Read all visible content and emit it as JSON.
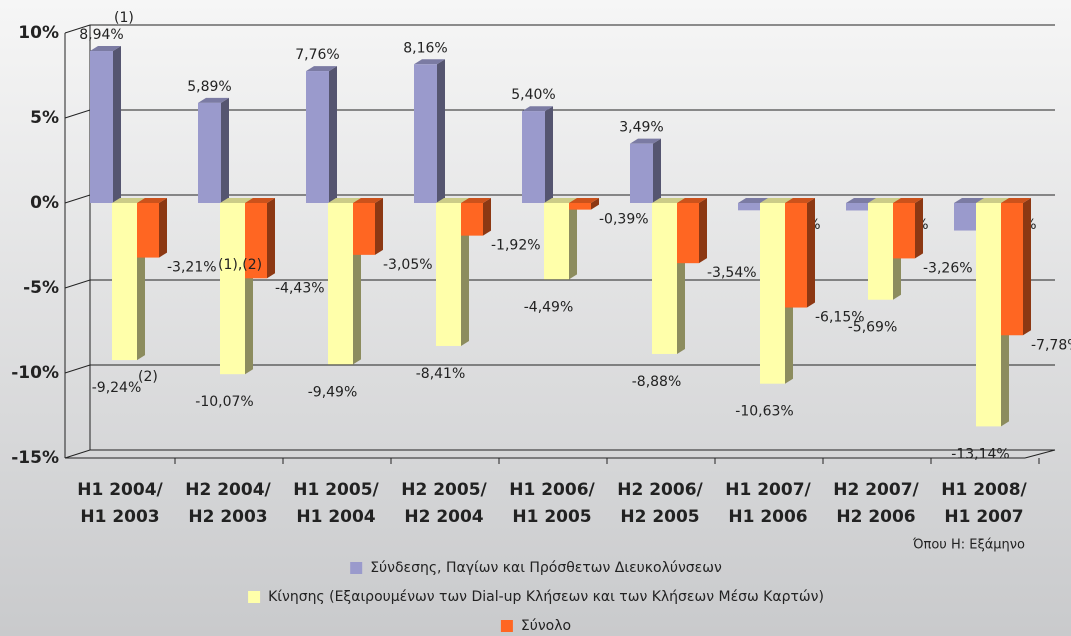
{
  "chart_data": {
    "type": "bar3d",
    "categories": [
      [
        "H1 2004/",
        "H1 2003"
      ],
      [
        "H2 2004/",
        "H2 2003"
      ],
      [
        "H1 2005/",
        "H1 2004"
      ],
      [
        "H2 2005/",
        "H2 2004"
      ],
      [
        "H1 2006/",
        "H1 2005"
      ],
      [
        "H2 2006/",
        "H2 2005"
      ],
      [
        "H1 2007/",
        "H1 2006"
      ],
      [
        "H2 2007/",
        "H2 2006"
      ],
      [
        "H1 2008/",
        "H1 2007"
      ]
    ],
    "series": [
      {
        "name": "Σύνδεσης, Παγίων και Πρόσθετων Διευκολύνσεων",
        "color": "#9a9acc",
        "values": [
          8.94,
          5.89,
          7.76,
          8.16,
          5.4,
          3.49,
          -0.43,
          -0.44,
          -1.62
        ],
        "value_labels": [
          "8,94%",
          "5,89%",
          "7,76%",
          "8,16%",
          "5,40%",
          "3,49%",
          "-0,43%",
          "-0,44%",
          "-1,62%"
        ]
      },
      {
        "name": "Κίνησης (Εξαιρουμένων των Dial-up Κλήσεων και των Κλήσεων Μέσω Καρτών)",
        "color": "#ffffaa",
        "values": [
          -9.24,
          -10.07,
          -9.49,
          -8.41,
          -4.49,
          -8.88,
          -10.63,
          -5.69,
          -13.14
        ],
        "value_labels": [
          "-9,24%",
          "-10,07%",
          "-9,49%",
          "-8,41%",
          "-4,49%",
          "-8,88%",
          "-10,63%",
          "-5,69%",
          "-13,14%"
        ]
      },
      {
        "name": "Σύνολο",
        "color": "#ff6622",
        "values": [
          -3.21,
          -4.43,
          -3.05,
          -1.92,
          -0.39,
          -3.54,
          -6.15,
          -3.26,
          -7.78
        ],
        "value_labels": [
          "-3,21%",
          "-4,43%",
          "-3,05%",
          "-1,92%",
          "-0,39%",
          "-3,54%",
          "-6,15%",
          "-3,26%",
          "-7,78%"
        ]
      }
    ],
    "ylim": [
      -15,
      10
    ],
    "yticks": [
      {
        "value": -15,
        "label": "-15%"
      },
      {
        "value": -10,
        "label": "-10%"
      },
      {
        "value": -5,
        "label": "-5%"
      },
      {
        "value": 0,
        "label": "0%"
      },
      {
        "value": 5,
        "label": "5%"
      },
      {
        "value": 10,
        "label": "10%"
      }
    ],
    "grid": true,
    "annotations": [
      "(1)",
      "(1),(2)",
      "(2)"
    ],
    "note": "Όπου Η: Εξάμηνο"
  }
}
